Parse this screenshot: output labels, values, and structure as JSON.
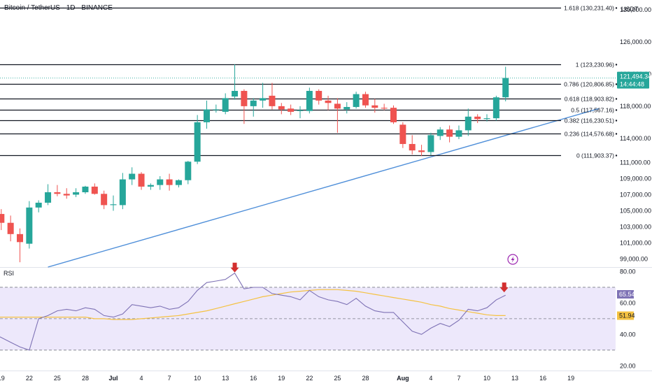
{
  "header": {
    "title": "Bitcoin / TetherUS · 1D · BINANCE",
    "currency": "USDT"
  },
  "colors": {
    "up": "#26a69a",
    "down": "#ef5350",
    "trendline": "#4f8fd9",
    "rsi_line": "#7e72b5",
    "rsi_ma": "#f5c242",
    "rsi_band": "#ede8fb",
    "price_tag": "#26a69a",
    "rsi_tag": "#7e72b5",
    "rsi_ma_tag": "#f5c242",
    "arrow": "#d32f2f"
  },
  "chart_data": {
    "type": "candlestick",
    "price_axis": {
      "min": 98000,
      "max": 131200,
      "ticks": [
        "130,000.00",
        "126,000.00",
        "122,000.00",
        "118,000.00",
        "114,000.00",
        "111,000.00",
        "109,000.00",
        "107,000.00",
        "105,000.00",
        "103,000.00",
        "101,000.00",
        "99,000.00"
      ],
      "tick_values": [
        130000,
        126000,
        122000,
        118000,
        114000,
        111000,
        109000,
        107000,
        105000,
        103000,
        101000,
        99000
      ]
    },
    "x_axis": {
      "labels": [
        "19",
        "22",
        "25",
        "28",
        "Jul",
        "4",
        "7",
        "10",
        "13",
        "16",
        "19",
        "22",
        "25",
        "28",
        "Aug",
        "4",
        "7",
        "10",
        "13",
        "16",
        "19"
      ],
      "label_days": [
        -12,
        -9,
        -6,
        -3,
        0,
        3,
        6,
        9,
        12,
        15,
        18,
        21,
        24,
        27,
        31,
        34,
        37,
        40,
        43,
        46,
        49
      ]
    },
    "candles": [
      {
        "day": -13,
        "o": 105800,
        "h": 106700,
        "l": 103400,
        "c": 104600
      },
      {
        "day": -12,
        "o": 104600,
        "h": 105200,
        "l": 102600,
        "c": 103500
      },
      {
        "day": -11,
        "o": 103500,
        "h": 104400,
        "l": 101200,
        "c": 102100
      },
      {
        "day": -10,
        "o": 102100,
        "h": 102800,
        "l": 98600,
        "c": 101100
      },
      {
        "day": -9,
        "o": 100900,
        "h": 106200,
        "l": 100300,
        "c": 105400
      },
      {
        "day": -8,
        "o": 105400,
        "h": 106300,
        "l": 104800,
        "c": 106000
      },
      {
        "day": -7,
        "o": 106000,
        "h": 108300,
        "l": 105700,
        "c": 107300
      },
      {
        "day": -6,
        "o": 107300,
        "h": 108200,
        "l": 106800,
        "c": 107100
      },
      {
        "day": -5,
        "o": 107100,
        "h": 107800,
        "l": 106500,
        "c": 106900
      },
      {
        "day": -4,
        "o": 107000,
        "h": 107800,
        "l": 106700,
        "c": 107300
      },
      {
        "day": -3,
        "o": 107300,
        "h": 108100,
        "l": 107100,
        "c": 108000
      },
      {
        "day": -2,
        "o": 108000,
        "h": 108400,
        "l": 107000,
        "c": 107100
      },
      {
        "day": -1,
        "o": 107100,
        "h": 107500,
        "l": 105200,
        "c": 105700
      },
      {
        "day": 0,
        "o": 105700,
        "h": 106900,
        "l": 105000,
        "c": 105800
      },
      {
        "day": 1,
        "o": 105700,
        "h": 109700,
        "l": 105200,
        "c": 108900
      },
      {
        "day": 2,
        "o": 108900,
        "h": 110400,
        "l": 108200,
        "c": 109600
      },
      {
        "day": 3,
        "o": 109600,
        "h": 109800,
        "l": 107600,
        "c": 108000
      },
      {
        "day": 4,
        "o": 108000,
        "h": 108400,
        "l": 107600,
        "c": 108200
      },
      {
        "day": 5,
        "o": 108200,
        "h": 109300,
        "l": 107600,
        "c": 108900
      },
      {
        "day": 6,
        "o": 108900,
        "h": 109600,
        "l": 107500,
        "c": 108200
      },
      {
        "day": 7,
        "o": 108200,
        "h": 108900,
        "l": 107900,
        "c": 108800
      },
      {
        "day": 8,
        "o": 108800,
        "h": 111200,
        "l": 108300,
        "c": 111100
      },
      {
        "day": 9,
        "o": 111100,
        "h": 116900,
        "l": 110800,
        "c": 116000
      },
      {
        "day": 10,
        "o": 116000,
        "h": 118700,
        "l": 115200,
        "c": 117600
      },
      {
        "day": 11,
        "o": 117500,
        "h": 118200,
        "l": 117200,
        "c": 117600
      },
      {
        "day": 12,
        "o": 117300,
        "h": 119600,
        "l": 117000,
        "c": 119000
      },
      {
        "day": 13,
        "o": 119200,
        "h": 123200,
        "l": 118800,
        "c": 119900
      },
      {
        "day": 14,
        "o": 119900,
        "h": 120100,
        "l": 115800,
        "c": 118000
      },
      {
        "day": 15,
        "o": 118000,
        "h": 119000,
        "l": 116700,
        "c": 118700
      },
      {
        "day": 16,
        "o": 118700,
        "h": 120900,
        "l": 117800,
        "c": 119000
      },
      {
        "day": 17,
        "o": 119300,
        "h": 120900,
        "l": 117600,
        "c": 118000
      },
      {
        "day": 18,
        "o": 118000,
        "h": 118400,
        "l": 117000,
        "c": 117600
      },
      {
        "day": 19,
        "o": 117700,
        "h": 118200,
        "l": 116900,
        "c": 117300
      },
      {
        "day": 20,
        "o": 117400,
        "h": 118000,
        "l": 116500,
        "c": 117500
      },
      {
        "day": 21,
        "o": 117400,
        "h": 120300,
        "l": 117100,
        "c": 119900
      },
      {
        "day": 22,
        "o": 119900,
        "h": 120100,
        "l": 118200,
        "c": 118700
      },
      {
        "day": 23,
        "o": 118700,
        "h": 119300,
        "l": 117500,
        "c": 118400
      },
      {
        "day": 24,
        "o": 118300,
        "h": 119000,
        "l": 114700,
        "c": 117700
      },
      {
        "day": 25,
        "o": 117600,
        "h": 118500,
        "l": 117100,
        "c": 117900
      },
      {
        "day": 26,
        "o": 117900,
        "h": 119800,
        "l": 117700,
        "c": 119500
      },
      {
        "day": 27,
        "o": 119500,
        "h": 119800,
        "l": 117800,
        "c": 118100
      },
      {
        "day": 28,
        "o": 118100,
        "h": 118900,
        "l": 117200,
        "c": 117800
      },
      {
        "day": 29,
        "o": 117800,
        "h": 118300,
        "l": 117500,
        "c": 117700
      },
      {
        "day": 30,
        "o": 117800,
        "h": 118100,
        "l": 115800,
        "c": 116000
      },
      {
        "day": 31,
        "o": 115700,
        "h": 116000,
        "l": 112800,
        "c": 113300
      },
      {
        "day": 32,
        "o": 113300,
        "h": 114400,
        "l": 112000,
        "c": 112500
      },
      {
        "day": 33,
        "o": 112500,
        "h": 113200,
        "l": 111800,
        "c": 112300
      },
      {
        "day": 34,
        "o": 112300,
        "h": 114700,
        "l": 111900,
        "c": 114400
      },
      {
        "day": 35,
        "o": 114300,
        "h": 115400,
        "l": 113800,
        "c": 115100
      },
      {
        "day": 36,
        "o": 115100,
        "h": 115600,
        "l": 113500,
        "c": 114200
      },
      {
        "day": 37,
        "o": 114200,
        "h": 115600,
        "l": 113900,
        "c": 115000
      },
      {
        "day": 38,
        "o": 115000,
        "h": 117700,
        "l": 114300,
        "c": 116700
      },
      {
        "day": 39,
        "o": 116700,
        "h": 117000,
        "l": 115900,
        "c": 116400
      },
      {
        "day": 40,
        "o": 116400,
        "h": 117000,
        "l": 116100,
        "c": 116500
      },
      {
        "day": 41,
        "o": 116500,
        "h": 119300,
        "l": 116200,
        "c": 119100
      },
      {
        "day": 42,
        "o": 119100,
        "h": 122900,
        "l": 118600,
        "c": 121500
      }
    ],
    "fib_levels": [
      {
        "label": "1.618 (130,231.40)",
        "value": 130231.4
      },
      {
        "label": "1 (123,230.96)",
        "value": 123231
      },
      {
        "label": "0.786 (120,806.85)",
        "value": 120807
      },
      {
        "label": "0.618 (118,903.82)",
        "value": 118904
      },
      {
        "label": "0.5 (117,567.16)",
        "value": 117567
      },
      {
        "label": "0.382 (116,230.51)",
        "value": 116231
      },
      {
        "label": "0.236 (114,576.68)",
        "value": 114577
      },
      {
        "label": "0 (111,903.37)",
        "value": 111903
      }
    ],
    "trendline": {
      "from": {
        "day": -7,
        "price": 98000
      },
      "to": {
        "day": 52,
        "price": 117700
      }
    },
    "last_price": {
      "value": 121494.34,
      "label": "121,494.34",
      "countdown": "14:44:48"
    },
    "rsi": {
      "name": "RSI",
      "axis_min": 17,
      "axis_max": 82,
      "ticks": [
        "80.00",
        "60.00",
        "40.00",
        "20.00"
      ],
      "tick_values": [
        80,
        60,
        40,
        20
      ],
      "upper": 70,
      "middle": 50,
      "lower": 30,
      "values": [
        41,
        38,
        35,
        32,
        30,
        50,
        52,
        55,
        56,
        55,
        57,
        56,
        52,
        51,
        53,
        59,
        58,
        57,
        58,
        56,
        57,
        61,
        68,
        73,
        74,
        75,
        79,
        69,
        70,
        70,
        66,
        65,
        64,
        62,
        68,
        64,
        62,
        61,
        59,
        63,
        58,
        55,
        54,
        54,
        48,
        42,
        40,
        44,
        47,
        45,
        49,
        56,
        55,
        57,
        62,
        65
      ],
      "ma": [
        51,
        51,
        51,
        51,
        50,
        50,
        49.5,
        49.5,
        49.5,
        50,
        50.5,
        51,
        51.5,
        52,
        53,
        54,
        55,
        56.5,
        58,
        59.5,
        61,
        62.5,
        64,
        65,
        66,
        67,
        67.5,
        68,
        68.5,
        68.5,
        68.5,
        68,
        67.5,
        66.5,
        65.5,
        64.5,
        63.5,
        62.5,
        61.5,
        60.5,
        59,
        58,
        56.5,
        55.5,
        54.5,
        53.5,
        52.5,
        52,
        52
      ],
      "ma_start_day": -6,
      "last_rsi": "65.54",
      "last_ma": "51.94"
    },
    "annotations": [
      "rsi-peak-arrow",
      "rsi-current-arrow",
      "lightning-icon"
    ]
  }
}
